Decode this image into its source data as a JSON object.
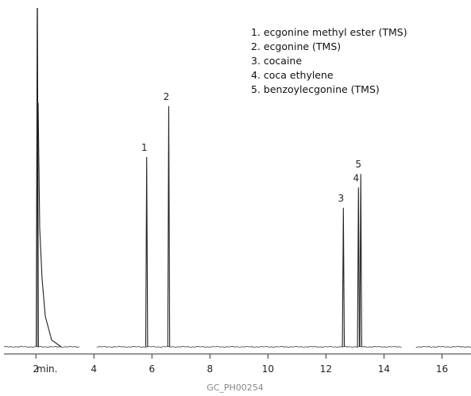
{
  "chart_data": {
    "type": "line",
    "x_unit_label": "min.",
    "xlim": [
      0.9,
      17.0
    ],
    "ylim": [
      0,
      100
    ],
    "x_ticks": [
      2,
      4,
      6,
      8,
      10,
      12,
      14,
      16
    ],
    "peaks": [
      {
        "label": "",
        "x": 2.05,
        "height": 100
      },
      {
        "label": "1",
        "x": 5.82,
        "height": 56
      },
      {
        "label": "2",
        "x": 6.58,
        "height": 71
      },
      {
        "label": "3",
        "x": 12.6,
        "height": 41
      },
      {
        "label": "4",
        "x": 13.12,
        "height": 47
      },
      {
        "label": "5",
        "x": 13.2,
        "height": 51
      }
    ],
    "legend": [
      "1. ecgonine methyl ester (TMS)",
      "2. ecgonine (TMS)",
      "3. cocaine",
      "4. coca ethylene",
      "5. benzoylecgonine (TMS)"
    ],
    "grid": false,
    "legend_position": "top-right"
  },
  "footer": {
    "code": "GC_PH00254"
  }
}
